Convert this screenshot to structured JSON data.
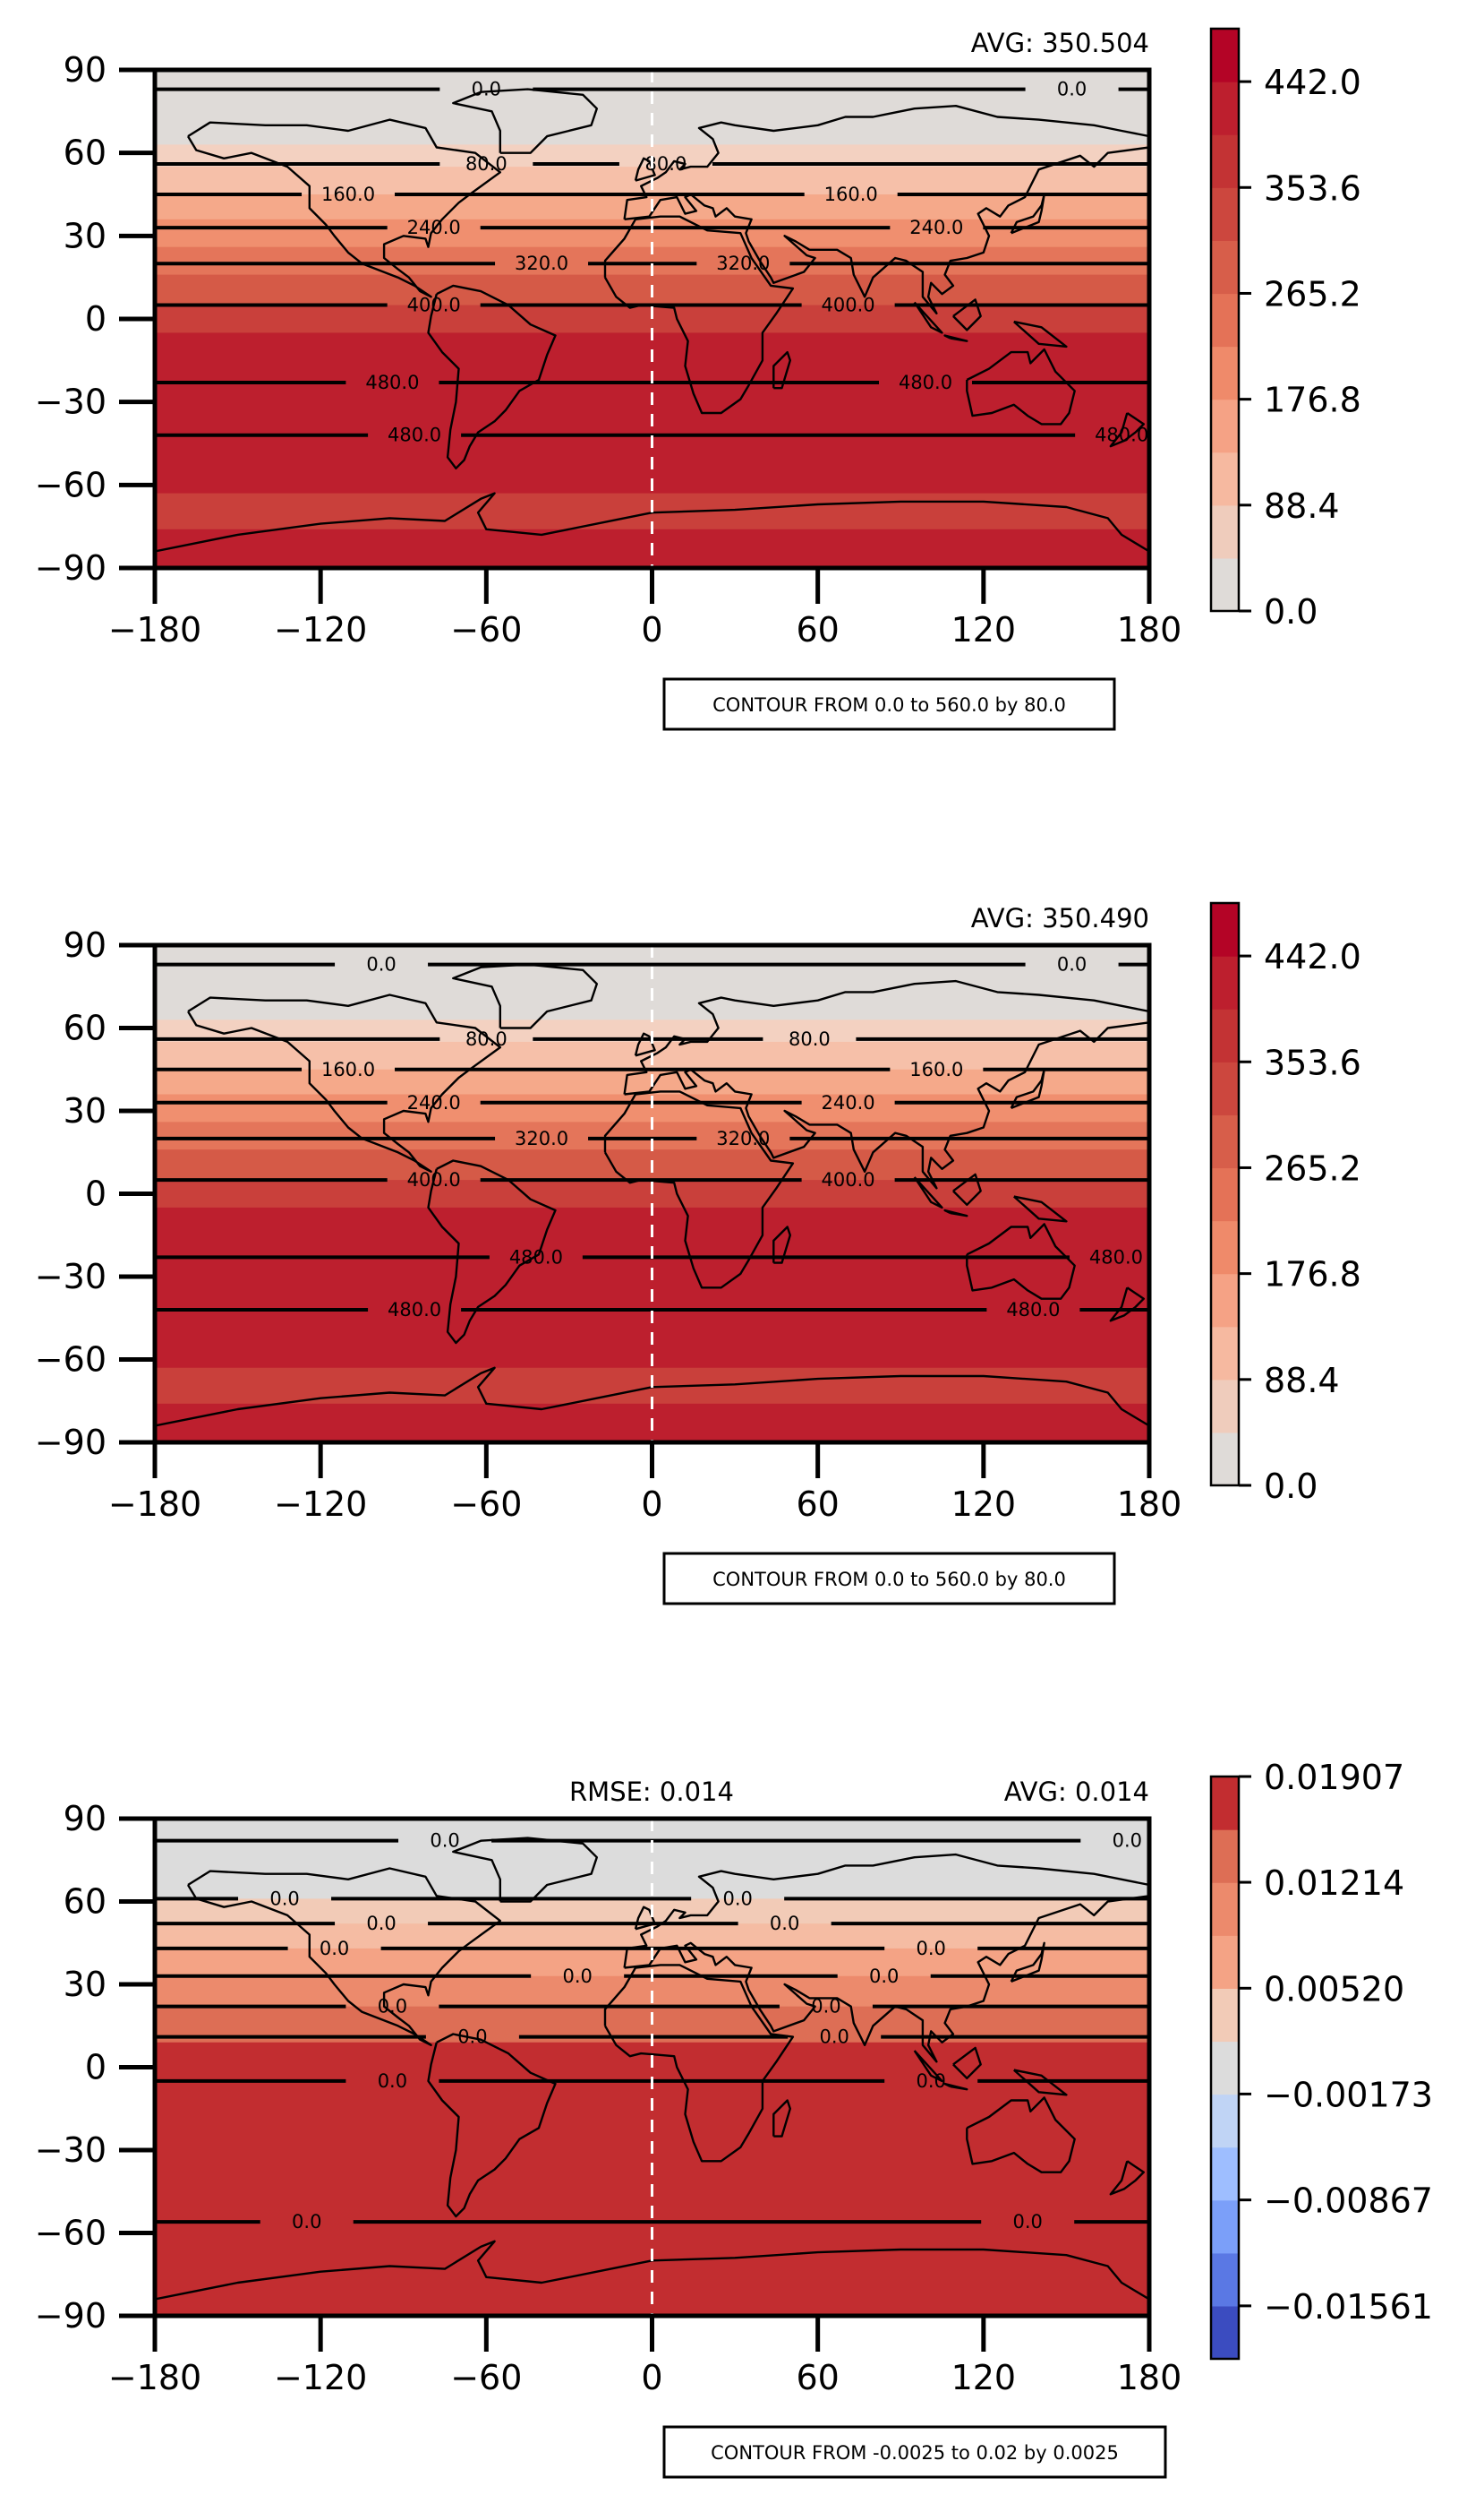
{
  "chart_data": [
    {
      "type": "heatmap",
      "avg": "AVG: 350.504",
      "rmse": "",
      "contour_note": "CONTOUR FROM 0.0 to 560.0 by 80.0",
      "xlim": [
        -180,
        180
      ],
      "ylim": [
        -90,
        90
      ],
      "xticks": [
        "−180",
        "−120",
        "−60",
        "0",
        "60",
        "120",
        "180"
      ],
      "yticks": [
        "90",
        "60",
        "30",
        "0",
        "−30",
        "−60",
        "−90"
      ],
      "xtick_values": [
        -180,
        -120,
        -60,
        0,
        60,
        120,
        180
      ],
      "ytick_values": [
        90,
        60,
        30,
        0,
        -30,
        -60,
        -90
      ],
      "bands": [
        {
          "lat_from": 90,
          "lat_to": 63,
          "color": "#dfdbd8"
        },
        {
          "lat_from": 63,
          "lat_to": 55,
          "color": "#f3d1c1"
        },
        {
          "lat_from": 55,
          "lat_to": 45,
          "color": "#f6c0a9"
        },
        {
          "lat_from": 45,
          "lat_to": 36,
          "color": "#f5a98a"
        },
        {
          "lat_from": 36,
          "lat_to": 26,
          "color": "#f08f6f"
        },
        {
          "lat_from": 26,
          "lat_to": 16,
          "color": "#e4755a"
        },
        {
          "lat_from": 16,
          "lat_to": 5,
          "color": "#d55a47"
        },
        {
          "lat_from": 5,
          "lat_to": -5,
          "color": "#c9403b"
        },
        {
          "lat_from": -5,
          "lat_to": -63,
          "color": "#bd1f2e"
        },
        {
          "lat_from": -63,
          "lat_to": -76,
          "color": "#c9403b"
        },
        {
          "lat_from": -76,
          "lat_to": -90,
          "color": "#bd1f2e"
        }
      ],
      "contours": [
        {
          "lat": 83,
          "labels": [
            {
              "lon": -60,
              "text": "0.0"
            },
            {
              "lon": 152,
              "text": "0.0"
            }
          ]
        },
        {
          "lat": 56,
          "labels": [
            {
              "lon": -60,
              "text": "80.0"
            },
            {
              "lon": 5,
              "text": "80.0"
            }
          ]
        },
        {
          "lat": 45,
          "labels": [
            {
              "lon": -110,
              "text": "160.0"
            },
            {
              "lon": 72,
              "text": "160.0"
            }
          ]
        },
        {
          "lat": 33,
          "labels": [
            {
              "lon": -79,
              "text": "240.0"
            },
            {
              "lon": 103,
              "text": "240.0"
            }
          ]
        },
        {
          "lat": 20,
          "labels": [
            {
              "lon": -40,
              "text": "320.0"
            },
            {
              "lon": 33,
              "text": "320.0"
            }
          ]
        },
        {
          "lat": 5,
          "labels": [
            {
              "lon": -79,
              "text": "400.0"
            },
            {
              "lon": 71,
              "text": "400.0"
            }
          ]
        },
        {
          "lat": -23,
          "labels": [
            {
              "lon": -94,
              "text": "480.0"
            },
            {
              "lon": 99,
              "text": "480.0"
            }
          ]
        },
        {
          "lat": -42,
          "labels": [
            {
              "lon": -86,
              "text": "480.0"
            },
            {
              "lon": 170,
              "text": "480.0"
            }
          ]
        }
      ],
      "colorbar": {
        "labels": [
          "442.0",
          "353.6",
          "265.2",
          "176.8",
          "88.4",
          "0.0"
        ],
        "min": 0.0,
        "max": 486.2,
        "label_values": [
          442.0,
          353.6,
          265.2,
          176.8,
          88.4,
          0.0
        ],
        "colors": [
          "#dfdbd8",
          "#efccbc",
          "#f6b9a0",
          "#f5a285",
          "#ef8a6a",
          "#e47257",
          "#d75e4a",
          "#cc473e",
          "#c33334",
          "#bd1f2e",
          "#b40426"
        ]
      }
    },
    {
      "type": "heatmap",
      "avg": "AVG: 350.490",
      "rmse": "",
      "contour_note": "CONTOUR FROM 0.0 to 560.0 by 80.0",
      "xlim": [
        -180,
        180
      ],
      "ylim": [
        -90,
        90
      ],
      "xticks": [
        "−180",
        "−120",
        "−60",
        "0",
        "60",
        "120",
        "180"
      ],
      "yticks": [
        "90",
        "60",
        "30",
        "0",
        "−30",
        "−60",
        "−90"
      ],
      "xtick_values": [
        -180,
        -120,
        -60,
        0,
        60,
        120,
        180
      ],
      "ytick_values": [
        90,
        60,
        30,
        0,
        -30,
        -60,
        -90
      ],
      "bands": [
        {
          "lat_from": 90,
          "lat_to": 63,
          "color": "#dfdbd8"
        },
        {
          "lat_from": 63,
          "lat_to": 55,
          "color": "#f3d1c1"
        },
        {
          "lat_from": 55,
          "lat_to": 45,
          "color": "#f6c0a9"
        },
        {
          "lat_from": 45,
          "lat_to": 36,
          "color": "#f5a98a"
        },
        {
          "lat_from": 36,
          "lat_to": 26,
          "color": "#f08f6f"
        },
        {
          "lat_from": 26,
          "lat_to": 16,
          "color": "#e4755a"
        },
        {
          "lat_from": 16,
          "lat_to": 5,
          "color": "#d55a47"
        },
        {
          "lat_from": 5,
          "lat_to": -5,
          "color": "#c9403b"
        },
        {
          "lat_from": -5,
          "lat_to": -63,
          "color": "#bd1f2e"
        },
        {
          "lat_from": -63,
          "lat_to": -76,
          "color": "#c9403b"
        },
        {
          "lat_from": -76,
          "lat_to": -90,
          "color": "#bd1f2e"
        }
      ],
      "contours": [
        {
          "lat": 83,
          "labels": [
            {
              "lon": -98,
              "text": "0.0"
            },
            {
              "lon": 152,
              "text": "0.0"
            }
          ]
        },
        {
          "lat": 56,
          "labels": [
            {
              "lon": -60,
              "text": "80.0"
            },
            {
              "lon": 57,
              "text": "80.0"
            }
          ]
        },
        {
          "lat": 45,
          "labels": [
            {
              "lon": -110,
              "text": "160.0"
            },
            {
              "lon": 103,
              "text": "160.0"
            }
          ]
        },
        {
          "lat": 33,
          "labels": [
            {
              "lon": -79,
              "text": "240.0"
            },
            {
              "lon": 71,
              "text": "240.0"
            }
          ]
        },
        {
          "lat": 20,
          "labels": [
            {
              "lon": -40,
              "text": "320.0"
            },
            {
              "lon": 33,
              "text": "320.0"
            }
          ]
        },
        {
          "lat": 5,
          "labels": [
            {
              "lon": -79,
              "text": "400.0"
            },
            {
              "lon": 71,
              "text": "400.0"
            }
          ]
        },
        {
          "lat": -23,
          "labels": [
            {
              "lon": -42,
              "text": "480.0"
            },
            {
              "lon": 168,
              "text": "480.0"
            }
          ]
        },
        {
          "lat": -42,
          "labels": [
            {
              "lon": -86,
              "text": "480.0"
            },
            {
              "lon": 138,
              "text": "480.0"
            }
          ]
        }
      ],
      "colorbar": {
        "labels": [
          "442.0",
          "353.6",
          "265.2",
          "176.8",
          "88.4",
          "0.0"
        ],
        "min": 0.0,
        "max": 486.2,
        "label_values": [
          442.0,
          353.6,
          265.2,
          176.8,
          88.4,
          0.0
        ],
        "colors": [
          "#dfdbd8",
          "#efccbc",
          "#f6b9a0",
          "#f5a285",
          "#ef8a6a",
          "#e47257",
          "#d75e4a",
          "#cc473e",
          "#c33334",
          "#bd1f2e",
          "#b40426"
        ]
      }
    },
    {
      "type": "heatmap",
      "avg": "AVG: 0.014",
      "rmse": "RMSE: 0.014",
      "contour_note": "CONTOUR FROM -0.0025 to 0.02 by 0.0025",
      "xlim": [
        -180,
        180
      ],
      "ylim": [
        -90,
        90
      ],
      "xticks": [
        "−180",
        "−120",
        "−60",
        "0",
        "60",
        "120",
        "180"
      ],
      "yticks": [
        "90",
        "60",
        "30",
        "0",
        "−30",
        "−60",
        "−90"
      ],
      "xtick_values": [
        -180,
        -120,
        -60,
        0,
        60,
        120,
        180
      ],
      "ytick_values": [
        90,
        60,
        30,
        0,
        -30,
        -60,
        -90
      ],
      "bands": [
        {
          "lat_from": 90,
          "lat_to": 61,
          "color": "#dcdcdc"
        },
        {
          "lat_from": 61,
          "lat_to": 52,
          "color": "#f2cbb7"
        },
        {
          "lat_from": 52,
          "lat_to": 43,
          "color": "#f5bca3"
        },
        {
          "lat_from": 43,
          "lat_to": 33,
          "color": "#f4a385"
        },
        {
          "lat_from": 33,
          "lat_to": 22,
          "color": "#ec8a6c"
        },
        {
          "lat_from": 22,
          "lat_to": 9,
          "color": "#dd6e55"
        },
        {
          "lat_from": 9,
          "lat_to": -90,
          "color": "#c22d30"
        }
      ],
      "contours": [
        {
          "lat": 82,
          "labels": [
            {
              "lon": -75,
              "text": "0.0"
            },
            {
              "lon": 172,
              "text": "0.0"
            }
          ]
        },
        {
          "lat": 61,
          "labels": [
            {
              "lon": -133,
              "text": "0.0"
            },
            {
              "lon": 31,
              "text": "0.0"
            }
          ]
        },
        {
          "lat": 52,
          "labels": [
            {
              "lon": -98,
              "text": "0.0"
            },
            {
              "lon": 48,
              "text": "0.0"
            }
          ]
        },
        {
          "lat": 43,
          "labels": [
            {
              "lon": -115,
              "text": "0.0"
            },
            {
              "lon": 101,
              "text": "0.0"
            }
          ]
        },
        {
          "lat": 33,
          "labels": [
            {
              "lon": -27,
              "text": "0.0"
            },
            {
              "lon": 84,
              "text": "0.0"
            }
          ]
        },
        {
          "lat": 22,
          "labels": [
            {
              "lon": -94,
              "text": "0.0"
            },
            {
              "lon": 63,
              "text": "0.0"
            }
          ]
        },
        {
          "lat": 11,
          "labels": [
            {
              "lon": -65,
              "text": "0.0"
            },
            {
              "lon": 66,
              "text": "0.0"
            }
          ]
        },
        {
          "lat": -5,
          "labels": [
            {
              "lon": -94,
              "text": "0.0"
            },
            {
              "lon": 101,
              "text": "0.0"
            }
          ]
        },
        {
          "lat": -56,
          "labels": [
            {
              "lon": -125,
              "text": "0.0"
            },
            {
              "lon": 136,
              "text": "0.0"
            }
          ]
        }
      ],
      "colorbar": {
        "labels": [
          "0.01907",
          "0.01214",
          "0.00520",
          "−0.00173",
          "−0.00867",
          "−0.01561"
        ],
        "min": -0.01908,
        "max": 0.01907,
        "label_values": [
          0.01907,
          0.01214,
          0.0052,
          -0.00173,
          -0.00867,
          -0.01561
        ],
        "colors": [
          "#3b4cc0",
          "#5a78e4",
          "#7b9ff9",
          "#9ebeff",
          "#c0d4f5",
          "#dcdcdc",
          "#f2cbb7",
          "#f4a385",
          "#ec8a6c",
          "#dd6e55",
          "#c22d30"
        ]
      }
    }
  ]
}
